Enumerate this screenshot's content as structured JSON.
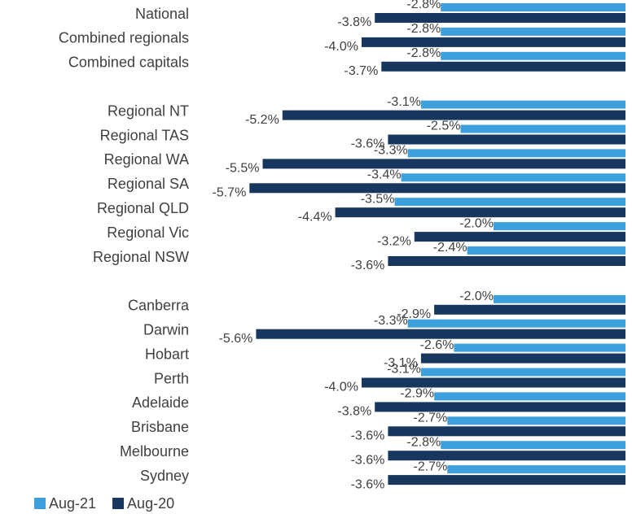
{
  "chart_data": {
    "type": "bar",
    "orientation": "horizontal",
    "categories": [
      "National",
      "Combined regionals",
      "Combined capitals",
      null,
      "Regional NT",
      "Regional TAS",
      "Regional WA",
      "Regional SA",
      "Regional QLD",
      "Regional Vic",
      "Regional NSW",
      null,
      "Canberra",
      "Darwin",
      "Hobart",
      "Perth",
      "Adelaide",
      "Brisbane",
      "Melbourne",
      "Sydney"
    ],
    "series": [
      {
        "name": "Aug-21",
        "color": "#3d9fdb",
        "values": [
          -2.8,
          -2.8,
          -2.8,
          null,
          -3.1,
          -2.5,
          -3.3,
          -3.4,
          -3.5,
          -2.0,
          -2.4,
          null,
          -2.0,
          -3.3,
          -2.6,
          -3.1,
          -2.9,
          -2.7,
          -2.8,
          -2.7
        ],
        "value_labels": [
          "-2.8%",
          "-2.8%",
          "-2.8%",
          null,
          "-3.1%",
          "-2.5%",
          "-3.3%",
          "-3.4%",
          "-3.5%",
          "-2.0%",
          "-2.4%",
          null,
          "-2.0%",
          "-3.3%",
          "-2.6%",
          "-3.1%",
          "-2.9%",
          "-2.7%",
          "-2.8%",
          "-2.7%"
        ]
      },
      {
        "name": "Aug-20",
        "color": "#17375e",
        "values": [
          -3.8,
          -4.0,
          -3.7,
          null,
          -5.2,
          -3.6,
          -5.5,
          -5.7,
          -4.4,
          -3.2,
          -3.6,
          null,
          -2.9,
          -5.6,
          -3.1,
          -4.0,
          -3.8,
          -3.6,
          -3.6,
          -3.6
        ],
        "value_labels": [
          "-3.8%",
          "-4.0%",
          "-3.7%",
          null,
          "-5.2%",
          "-3.6%",
          "-5.5%",
          "-5.7%",
          "-4.4%",
          "-3.2%",
          "-3.6%",
          null,
          "-2.9%",
          "-5.6%",
          "-3.1%",
          "-4.0%",
          "-3.8%",
          "-3.6%",
          "-3.6%",
          "-3.6%"
        ]
      }
    ]
  }
}
